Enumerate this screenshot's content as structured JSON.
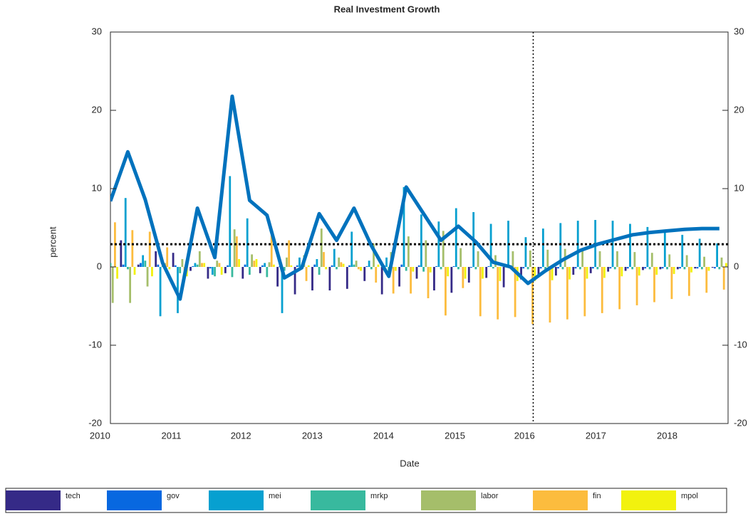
{
  "chart_data": {
    "type": "bar-line",
    "title": "Real Investment Growth",
    "x_label": "Date",
    "y_label": "percent",
    "categories": [
      null,
      null,
      null,
      null,
      null,
      null,
      null,
      null,
      null,
      null,
      null,
      null,
      null,
      null,
      null,
      null,
      null,
      null,
      null,
      null,
      null,
      null,
      null,
      null,
      null,
      null,
      null,
      null,
      null,
      null,
      null,
      null,
      null,
      null,
      null,
      null
    ],
    "xlim": [
      0,
      35.5
    ],
    "xticks": [
      {
        "value": -0.6,
        "label": "2010"
      },
      {
        "value": 3.5,
        "label": "2011"
      },
      {
        "value": 7.5,
        "label": "2012"
      },
      {
        "value": 11.6,
        "label": "2013"
      },
      {
        "value": 15.7,
        "label": "2014"
      },
      {
        "value": 19.8,
        "label": "2015"
      },
      {
        "value": 23.8,
        "label": "2016"
      },
      {
        "value": 27.9,
        "label": "2017"
      },
      {
        "value": 32.0,
        "label": "2018"
      }
    ],
    "ylim": [
      -20,
      30
    ],
    "yticks": [
      -20,
      -10,
      0,
      10,
      20,
      30
    ],
    "y2lim": [
      -20,
      30
    ],
    "y2ticks": [
      -20,
      -10,
      0,
      10,
      20,
      30
    ],
    "stacked": false,
    "series": [
      {
        "name": "tech",
        "color": "#352a87",
        "values": [
          3.0,
          3.4,
          0.3,
          2.0,
          1.8,
          -0.5,
          -1.5,
          -0.8,
          -1.5,
          -0.8,
          -2.5,
          -3.5,
          -3.0,
          -3.0,
          -2.8,
          -1.8,
          -3.5,
          -2.5,
          -1.5,
          -3.0,
          -3.3,
          -2.0,
          -1.4,
          -2.6,
          -1.6,
          -1.3,
          -1.1,
          -1.0,
          -0.8,
          -0.6,
          -0.5,
          -0.4,
          -0.3,
          -0.3,
          -0.2,
          -0.1
        ]
      },
      {
        "name": "gov",
        "color": "#0868e0",
        "values": [
          -0.3,
          0.3,
          0.5,
          0.3,
          0.2,
          0.1,
          -0.2,
          0.2,
          0.3,
          0.2,
          0.1,
          0.2,
          0.3,
          0.2,
          0.2,
          0.1,
          0.2,
          0.3,
          0.2,
          0.1,
          0.1,
          -0.1,
          0.1,
          0.1,
          -0.2,
          -0.2,
          -0.2,
          -0.2,
          -0.2,
          -0.2,
          -0.2,
          -0.2,
          -0.2,
          -0.2,
          -0.2,
          -0.2
        ]
      },
      {
        "name": "mei",
        "color": "#07a0d0",
        "values": [
          2.0,
          8.8,
          1.5,
          -6.3,
          -5.9,
          0.5,
          -1.0,
          11.6,
          6.2,
          0.5,
          -5.9,
          1.2,
          1.0,
          2.3,
          4.5,
          0.8,
          1.2,
          10.2,
          6.7,
          5.8,
          7.5,
          7.0,
          5.5,
          5.9,
          3.8,
          4.9,
          5.6,
          5.9,
          6.0,
          5.9,
          5.5,
          5.1,
          4.6,
          4.1,
          3.6,
          3.0
        ]
      },
      {
        "name": "mrkp",
        "color": "#38b99e",
        "values": [
          0.5,
          -0.3,
          0.8,
          0.2,
          -0.8,
          0.3,
          -1.2,
          -1.3,
          -1.0,
          -1.3,
          -0.5,
          0.3,
          -1.0,
          -0.3,
          0.3,
          -0.3,
          -1.0,
          -0.5,
          -0.6,
          -0.3,
          -0.3,
          -0.3,
          -0.2,
          -0.2,
          -0.3,
          -0.3,
          -0.3,
          -0.3,
          -0.3,
          -0.3,
          -0.3,
          -0.3,
          -0.3,
          -0.3,
          -0.3,
          -0.3
        ]
      },
      {
        "name": "labor",
        "color": "#a5be6a",
        "values": [
          -4.6,
          -4.6,
          -2.5,
          0.5,
          1.0,
          2.0,
          0.8,
          4.8,
          1.6,
          0.6,
          1.2,
          1.5,
          4.9,
          1.2,
          0.8,
          3.0,
          1.9,
          3.9,
          3.4,
          4.6,
          2.4,
          2.0,
          1.5,
          2.0,
          2.1,
          2.2,
          2.3,
          2.2,
          2.0,
          2.0,
          1.9,
          1.8,
          1.6,
          1.5,
          1.3,
          1.2
        ]
      },
      {
        "name": "fin",
        "color": "#fcbc3e",
        "values": [
          5.7,
          4.7,
          4.5,
          2.5,
          -1.2,
          0.5,
          0.5,
          3.9,
          0.8,
          4.0,
          3.4,
          -1.8,
          1.9,
          0.6,
          -0.3,
          -2.0,
          -3.4,
          -3.4,
          -4.0,
          -6.2,
          -2.7,
          -6.3,
          -6.7,
          -6.4,
          -7.3,
          -7.1,
          -6.7,
          -6.3,
          -5.9,
          -5.4,
          -4.9,
          -4.5,
          -4.1,
          -3.7,
          -3.3,
          -2.9
        ]
      },
      {
        "name": "mpol",
        "color": "#f2f20e",
        "values": [
          -1.5,
          -1.0,
          -1.2,
          -0.3,
          -1.2,
          0.5,
          -1.0,
          1.0,
          1.0,
          0.3,
          0.2,
          0.2,
          -0.3,
          0.4,
          -0.5,
          0.3,
          -0.5,
          -0.6,
          -0.7,
          -1.2,
          -1.5,
          -1.5,
          -1.8,
          -1.8,
          -1.8,
          -1.7,
          -1.6,
          -1.5,
          -1.4,
          -1.2,
          -1.1,
          -1.0,
          -0.9,
          -0.7,
          -0.5,
          0.5
        ]
      }
    ],
    "line": {
      "color": "#0072bd",
      "values": [
        8.4,
        14.7,
        8.6,
        0.5,
        -4.1,
        7.5,
        1.2,
        21.8,
        8.5,
        6.6,
        -1.4,
        -0.1,
        6.8,
        3.4,
        7.5,
        2.7,
        -1.2,
        10.2,
        6.8,
        3.4,
        5.2,
        3.2,
        0.6,
        0.0,
        -2.1,
        -0.5,
        0.9,
        2.1,
        2.9,
        3.5,
        4.1,
        4.4,
        4.6,
        4.8,
        4.9,
        4.9
      ]
    },
    "hline": 2.9,
    "vline": 24.3,
    "legend": "bottom"
  }
}
